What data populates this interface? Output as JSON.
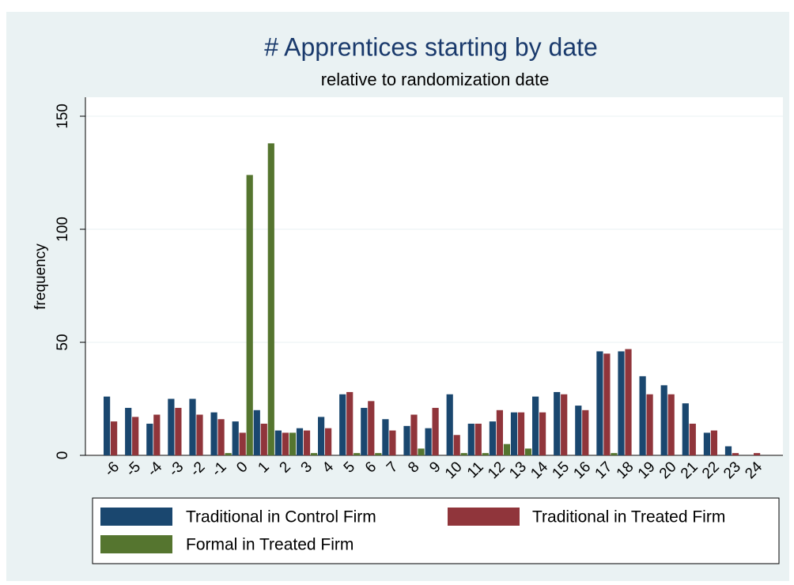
{
  "chart_data": {
    "type": "bar",
    "title": "# Apprentices starting by date",
    "subtitle": "relative to randomization date",
    "y_label": "frequency",
    "categories": [
      "-6",
      "-5",
      "-4",
      "-3",
      "-2",
      "-1",
      "0",
      "1",
      "2",
      "3",
      "4",
      "5",
      "6",
      "7",
      "8",
      "9",
      "10",
      "11",
      "12",
      "13",
      "14",
      "15",
      "16",
      "17",
      "18",
      "19",
      "20",
      "21",
      "22",
      "23",
      "24"
    ],
    "series": [
      {
        "name": "Traditional in Control Firm",
        "color": "#1a476f",
        "values": [
          26,
          21,
          14,
          25,
          25,
          19,
          15,
          20,
          11,
          12,
          17,
          27,
          21,
          16,
          13,
          12,
          27,
          14,
          15,
          19,
          26,
          28,
          22,
          46,
          46,
          35,
          31,
          23,
          10,
          4,
          0
        ]
      },
      {
        "name": "Traditional in Treated Firm",
        "color": "#90353b",
        "values": [
          15,
          17,
          18,
          21,
          18,
          16,
          10,
          14,
          10,
          11,
          12,
          28,
          24,
          11,
          18,
          21,
          9,
          14,
          20,
          19,
          19,
          27,
          20,
          45,
          47,
          27,
          27,
          14,
          11,
          1,
          1
        ]
      },
      {
        "name": "Formal in Treated Firm",
        "color": "#55752f",
        "values": [
          0,
          0,
          0,
          0,
          0,
          1,
          124,
          138,
          10,
          1,
          0,
          1,
          1,
          0,
          3,
          0,
          1,
          1,
          5,
          3,
          0,
          0,
          0,
          1,
          0,
          0,
          0,
          0,
          0,
          0,
          0
        ]
      }
    ],
    "ylim": [
      0,
      150
    ],
    "yticks": [
      0,
      50,
      100,
      150
    ],
    "grid": true
  }
}
